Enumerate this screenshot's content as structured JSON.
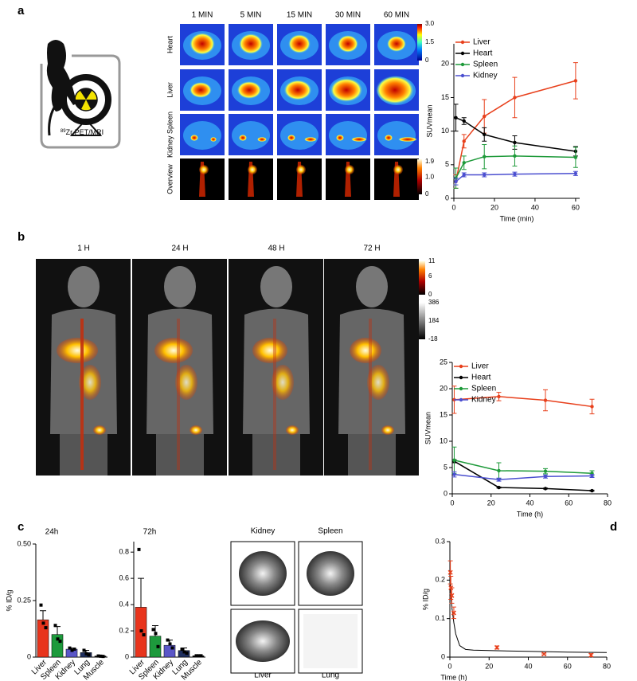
{
  "panels": {
    "a": "a",
    "b": "b",
    "c": "c",
    "d": "d"
  },
  "scanner_label": {
    "mass": "89",
    "text": "Zr PET/MRI"
  },
  "panel_a_images": {
    "columns": [
      "1 MIN",
      "5 MIN",
      "15 MIN",
      "30 MIN",
      "60 MIN"
    ],
    "rows": [
      "Heart",
      "Liver",
      "Kidney Spleen",
      "Overview"
    ],
    "colorbar_top": [
      {
        "value": 3,
        "label": "3.0"
      },
      1.5,
      0
    ],
    "colorbar_bottom": [
      1.9,
      {
        "value": 1,
        "label": "1.0"
      },
      0
    ]
  },
  "panel_b_images": {
    "columns": [
      "1 H",
      "24 H",
      "48 H",
      "72 H"
    ],
    "colorbar_pet": [
      11,
      6,
      0
    ],
    "colorbar_mri": [
      386,
      184,
      -18
    ]
  },
  "panel_c_images": {
    "top": [
      "Kidney",
      "Spleen"
    ],
    "bottom": [
      "Liver",
      "Lung"
    ]
  },
  "chart_data": [
    {
      "type": "line",
      "xlabel": "Time (min)",
      "ylabel": "SUVmean",
      "xlim": [
        0,
        62
      ],
      "ylim": [
        0,
        23
      ],
      "xticks": [
        0,
        20,
        40,
        60
      ],
      "yticks": [
        0,
        5,
        10,
        15,
        20
      ],
      "legend": "upper left",
      "series": [
        {
          "name": "Liver",
          "color": "#e8401c",
          "x": [
            1,
            5,
            15,
            30,
            60
          ],
          "values": [
            2.5,
            8.5,
            12.2,
            15,
            17.5
          ],
          "errors": [
            1,
            1,
            2.5,
            3,
            2.7
          ]
        },
        {
          "name": "Heart",
          "color": "#000000",
          "x": [
            1,
            5,
            15,
            30,
            60
          ],
          "values": [
            12,
            11.5,
            9.5,
            8.3,
            7
          ],
          "errors": [
            2,
            0.5,
            1,
            1,
            0.7
          ]
        },
        {
          "name": "Spleen",
          "color": "#1e9a3a",
          "x": [
            1,
            5,
            15,
            30,
            60
          ],
          "values": [
            3,
            5.3,
            6.2,
            6.3,
            6.1
          ],
          "errors": [
            1.5,
            1,
            1.8,
            1.5,
            1.5
          ]
        },
        {
          "name": "Kidney",
          "color": "#4b4fd0",
          "x": [
            1,
            5,
            15,
            30,
            60
          ],
          "values": [
            2.5,
            3.5,
            3.5,
            3.6,
            3.7
          ],
          "errors": [
            0.5,
            0.3,
            0.3,
            0.3,
            0.3
          ]
        }
      ]
    },
    {
      "type": "line",
      "xlabel": "Time (h)",
      "ylabel": "SUVmean",
      "xlim": [
        0,
        80
      ],
      "ylim": [
        0,
        25
      ],
      "xticks": [
        0,
        20,
        40,
        60,
        80
      ],
      "yticks": [
        0,
        5,
        10,
        15,
        20,
        25
      ],
      "legend": "upper left",
      "series": [
        {
          "name": "Liver",
          "color": "#e8401c",
          "x": [
            1,
            24,
            48,
            72
          ],
          "values": [
            17.9,
            18.5,
            17.8,
            16.6
          ],
          "errors": [
            2.6,
            0.8,
            2,
            1.4
          ]
        },
        {
          "name": "Heart",
          "color": "#000000",
          "x": [
            1,
            24,
            48,
            72
          ],
          "values": [
            6.2,
            1.2,
            1.0,
            0.6
          ],
          "errors": [
            0.3,
            0.1,
            0.1,
            0.1
          ]
        },
        {
          "name": "Spleen",
          "color": "#1e9a3a",
          "x": [
            1,
            24,
            48,
            72
          ],
          "values": [
            6.4,
            4.4,
            4.3,
            3.9
          ],
          "errors": [
            2.5,
            1.5,
            0.5,
            0.5
          ]
        },
        {
          "name": "Kidney",
          "color": "#4b4fd0",
          "x": [
            1,
            24,
            48,
            72
          ],
          "values": [
            3.7,
            2.7,
            3.3,
            3.4
          ],
          "errors": [
            0.5,
            0.3,
            0.3,
            0.3
          ]
        }
      ]
    },
    {
      "type": "bar",
      "title": "24h",
      "ylabel": "% ID/g",
      "ylim": [
        0,
        0.5
      ],
      "yticks": [
        0,
        0.25,
        {
          "value": 0.5,
          "label": "0.50"
        }
      ],
      "categories": [
        "Liver",
        "Spleen",
        "Kidney",
        "Lung",
        "Muscle"
      ],
      "colors": [
        "#e8341c",
        "#1d9a3c",
        "#5a56c8",
        "#1f2f5f",
        "#000000"
      ],
      "values": [
        0.165,
        0.1,
        0.035,
        0.02,
        0.005
      ],
      "errors": [
        0.04,
        0.035,
        0.005,
        0.01,
        0.002
      ],
      "points": [
        [
          0.23,
          0.15,
          0.13
        ],
        [
          0.14,
          0.08,
          0.07
        ],
        [
          0.04,
          0.03,
          0.035
        ],
        [
          0.03,
          0.015,
          0.01
        ],
        [
          0.005,
          0.004,
          0.003
        ]
      ]
    },
    {
      "type": "bar",
      "title": "72h",
      "ylim": [
        0,
        0.88
      ],
      "yticks": [
        0,
        0.2,
        0.4,
        0.6,
        0.8
      ],
      "categories": [
        "Liver",
        "Spleen",
        "Kidney",
        "Lung",
        "Muscle"
      ],
      "colors": [
        "#e8341c",
        "#1d9a3c",
        "#5a56c8",
        "#1f2f5f",
        "#000000"
      ],
      "values": [
        0.38,
        0.16,
        0.09,
        0.05,
        0.01
      ],
      "errors": [
        0.22,
        0.08,
        0.04,
        0.02,
        0.003
      ],
      "points": [
        [
          0.82,
          0.2,
          0.17
        ],
        [
          0.21,
          0.18,
          0.08
        ],
        [
          0.13,
          0.1,
          0.07
        ],
        [
          0.06,
          0.04,
          0.03
        ],
        [
          0.01,
          0.01,
          0.01
        ]
      ]
    },
    {
      "type": "scatter",
      "xlabel": "Time (h)",
      "ylabel": "% ID/g",
      "xlim": [
        0,
        80
      ],
      "ylim": [
        0,
        0.3
      ],
      "xticks": [
        0,
        20,
        40,
        60,
        80
      ],
      "yticks": [
        0,
        0.1,
        0.2,
        0.3
      ],
      "series": [
        {
          "color": "#e8401c",
          "x": [
            0.25,
            0.5,
            1,
            2,
            24,
            48,
            72
          ],
          "values": [
            0.22,
            0.18,
            0.16,
            0.115,
            0.025,
            0.008,
            0.005
          ],
          "errors": [
            0.03,
            0.03,
            0.02,
            0.015,
            0.004,
            0.002,
            0.004
          ]
        }
      ],
      "fit": {
        "color": "#000000",
        "x": [
          0,
          1,
          2,
          3,
          5,
          8,
          12,
          20,
          40,
          60,
          80
        ],
        "values": [
          0.2,
          0.13,
          0.09,
          0.06,
          0.03,
          0.02,
          0.018,
          0.017,
          0.015,
          0.013,
          0.012
        ]
      }
    }
  ]
}
